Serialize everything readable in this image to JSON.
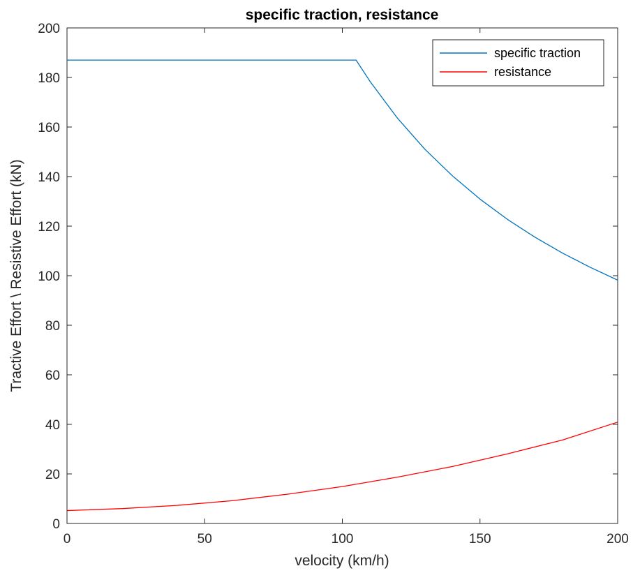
{
  "chart_data": {
    "type": "line",
    "title": "specific traction, resistance",
    "xlabel": "velocity (km/h)",
    "ylabel": "Tractive Effort \\ Resistive Effort (kN)",
    "xlim": [
      0,
      200
    ],
    "ylim": [
      0,
      200
    ],
    "xticks": [
      0,
      50,
      100,
      150,
      200
    ],
    "yticks": [
      0,
      20,
      40,
      60,
      80,
      100,
      120,
      140,
      160,
      180,
      200
    ],
    "grid": false,
    "legend_position": "top-right",
    "series": [
      {
        "name": "specific traction",
        "color": "#0072BD",
        "x": [
          0,
          105,
          110,
          120,
          130,
          140,
          150,
          160,
          170,
          180,
          190,
          200
        ],
        "values": [
          187,
          187,
          178.5,
          163.6,
          151,
          140.3,
          130.9,
          122.7,
          115.5,
          109.1,
          103.4,
          98.2
        ]
      },
      {
        "name": "resistance",
        "color": "#FF0000",
        "x": [
          0,
          20,
          40,
          60,
          80,
          100,
          120,
          140,
          160,
          180,
          200
        ],
        "values": [
          5.2,
          6,
          7.3,
          9.2,
          11.8,
          14.9,
          18.7,
          23,
          28.1,
          33.7,
          40.9
        ]
      }
    ]
  }
}
